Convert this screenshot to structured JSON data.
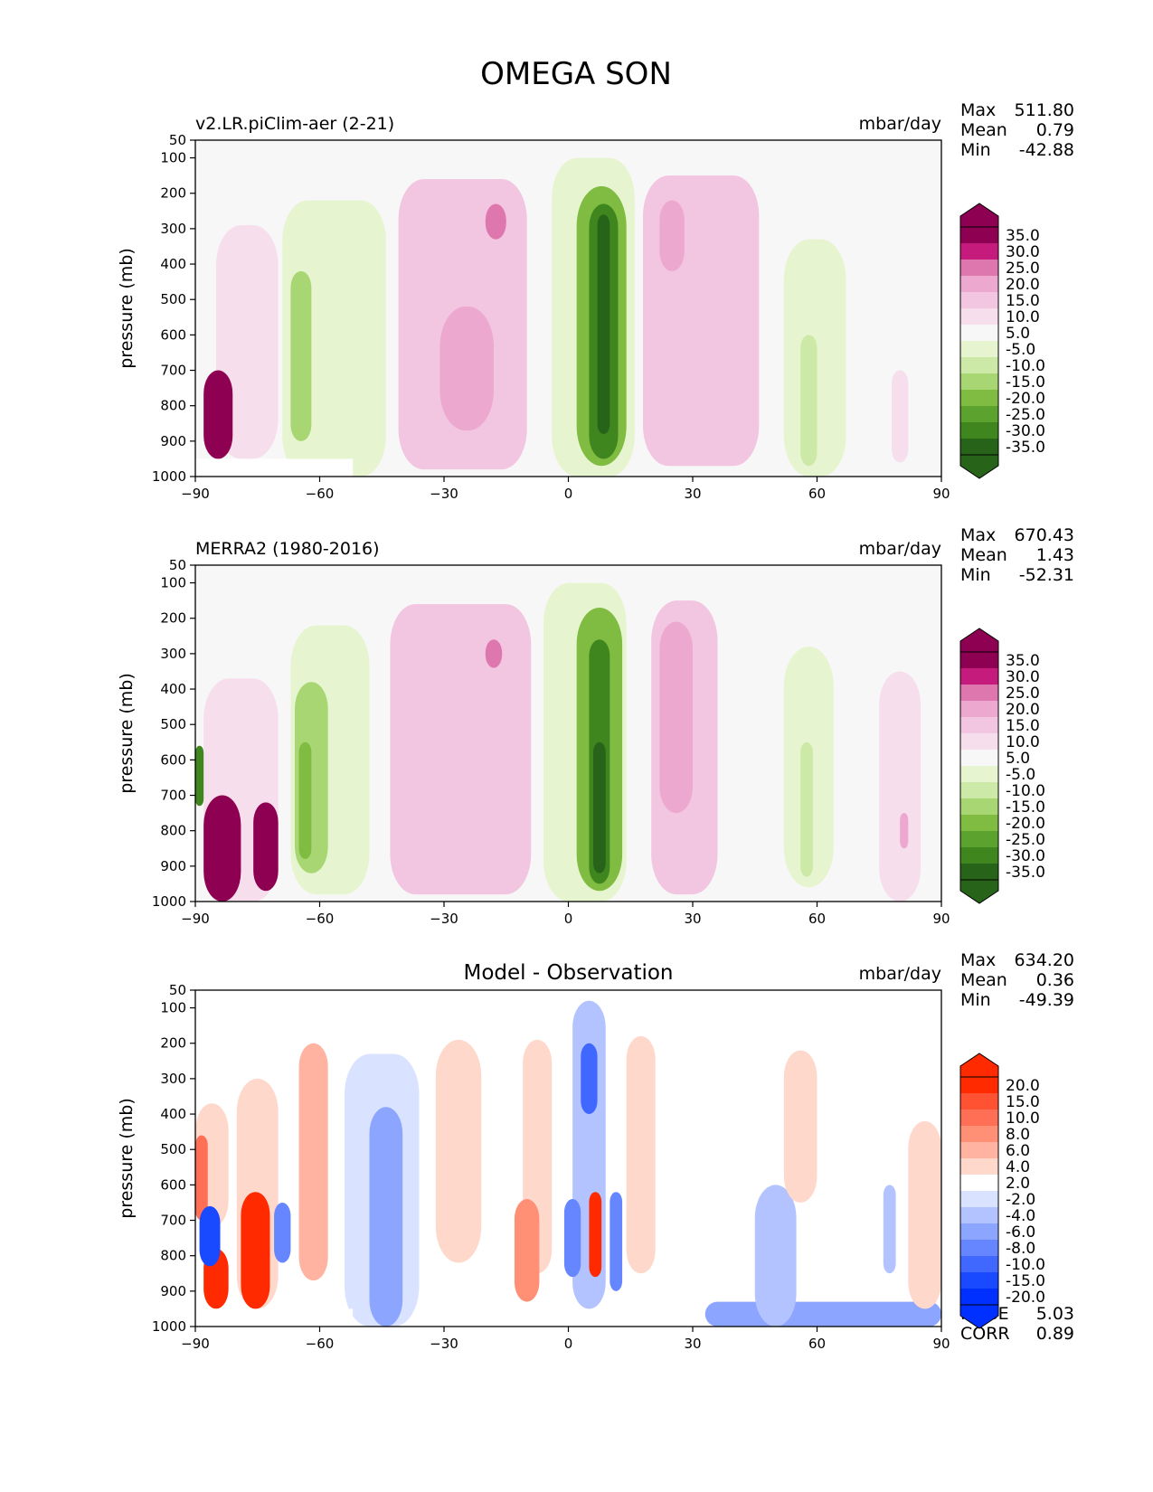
{
  "figure_title": "OMEGA SON",
  "chart_data": [
    {
      "type": "contour",
      "panel": "model",
      "title_left": "v2.LR.piClim-aer (2-21)",
      "title_center": "",
      "units": "mbar/day",
      "ylabel": "pressure (mb)",
      "xlabel": "",
      "x_ticks": [
        "−90",
        "−60",
        "−30",
        "0",
        "30",
        "60",
        "90"
      ],
      "x_tick_values": [
        -90,
        -60,
        -30,
        0,
        30,
        60,
        90
      ],
      "y_ticks": [
        "50",
        "100",
        "200",
        "300",
        "400",
        "500",
        "600",
        "700",
        "800",
        "900",
        "1000"
      ],
      "y_tick_values": [
        50,
        100,
        200,
        300,
        400,
        500,
        600,
        700,
        800,
        900,
        1000
      ],
      "xlim": [
        -90,
        90
      ],
      "ylim": [
        1000,
        50
      ],
      "stats": [
        {
          "label": "Max",
          "value": "511.80"
        },
        {
          "label": "Mean",
          "value": "0.79"
        },
        {
          "label": "Min",
          "value": "-42.88"
        }
      ],
      "colorbar": {
        "labels": [
          "35.0",
          "30.0",
          "25.0",
          "20.0",
          "15.0",
          "10.0",
          "5.0",
          "-5.0",
          "-10.0",
          "-15.0",
          "-20.0",
          "-25.0",
          "-30.0",
          "-35.0"
        ],
        "colors": [
          "#8e0152",
          "#8e0152",
          "#c51b7d",
          "#de77ae",
          "#eda8cf",
          "#f2c5e0",
          "#f7deec",
          "#f7f7f7",
          "#e6f5d0",
          "#cce9a8",
          "#a8d672",
          "#7fbc41",
          "#5ba22f",
          "#3f861f",
          "#276419",
          "#276419"
        ]
      },
      "features": [
        {
          "kind": "positive",
          "level": 1,
          "lat": [
            -85,
            -70
          ],
          "p": [
            290,
            950
          ]
        },
        {
          "kind": "negative",
          "level": 1,
          "lat": [
            -69,
            -44
          ],
          "p": [
            220,
            1000
          ]
        },
        {
          "kind": "negative",
          "level": 3,
          "lat": [
            -67,
            -62
          ],
          "p": [
            420,
            900
          ]
        },
        {
          "kind": "positive",
          "level": 2,
          "lat": [
            -41,
            -10
          ],
          "p": [
            160,
            980
          ]
        },
        {
          "kind": "positive",
          "level": 3,
          "lat": [
            -31,
            -18
          ],
          "p": [
            520,
            870
          ]
        },
        {
          "kind": "positive",
          "level": 4,
          "lat": [
            -20,
            -15
          ],
          "p": [
            230,
            330
          ]
        },
        {
          "kind": "negative",
          "level": 1,
          "lat": [
            -4,
            16
          ],
          "p": [
            100,
            1000
          ]
        },
        {
          "kind": "negative",
          "level": 4,
          "lat": [
            2,
            14
          ],
          "p": [
            180,
            970
          ]
        },
        {
          "kind": "negative",
          "level": 6,
          "lat": [
            5,
            12
          ],
          "p": [
            230,
            950
          ]
        },
        {
          "kind": "negative",
          "level": 7,
          "lat": [
            7,
            10
          ],
          "p": [
            260,
            880
          ]
        },
        {
          "kind": "positive",
          "level": 2,
          "lat": [
            18,
            46
          ],
          "p": [
            150,
            970
          ]
        },
        {
          "kind": "positive",
          "level": 3,
          "lat": [
            22,
            28
          ],
          "p": [
            220,
            420
          ]
        },
        {
          "kind": "negative",
          "level": 1,
          "lat": [
            52,
            67
          ],
          "p": [
            330,
            1000
          ]
        },
        {
          "kind": "negative",
          "level": 2,
          "lat": [
            56,
            60
          ],
          "p": [
            600,
            970
          ]
        },
        {
          "kind": "positive",
          "level": 8,
          "lat": [
            -88,
            -81
          ],
          "p": [
            700,
            950
          ]
        },
        {
          "kind": "positive",
          "level": 1,
          "lat": [
            78,
            82
          ],
          "p": [
            700,
            960
          ]
        }
      ],
      "missing": [
        {
          "lat": [
            -90,
            -52
          ],
          "p": [
            950,
            1000
          ]
        }
      ]
    },
    {
      "type": "contour",
      "panel": "observation",
      "title_left": "MERRA2 (1980-2016)",
      "title_center": "",
      "units": "mbar/day",
      "ylabel": "pressure (mb)",
      "xlabel": "",
      "x_ticks": [
        "−90",
        "−60",
        "−30",
        "0",
        "30",
        "60",
        "90"
      ],
      "x_tick_values": [
        -90,
        -60,
        -30,
        0,
        30,
        60,
        90
      ],
      "y_ticks": [
        "50",
        "100",
        "200",
        "300",
        "400",
        "500",
        "600",
        "700",
        "800",
        "900",
        "1000"
      ],
      "y_tick_values": [
        50,
        100,
        200,
        300,
        400,
        500,
        600,
        700,
        800,
        900,
        1000
      ],
      "xlim": [
        -90,
        90
      ],
      "ylim": [
        1000,
        50
      ],
      "stats": [
        {
          "label": "Max",
          "value": "670.43"
        },
        {
          "label": "Mean",
          "value": "1.43"
        },
        {
          "label": "Min",
          "value": "-52.31"
        }
      ],
      "colorbar": {
        "labels": [
          "35.0",
          "30.0",
          "25.0",
          "20.0",
          "15.0",
          "10.0",
          "5.0",
          "-5.0",
          "-10.0",
          "-15.0",
          "-20.0",
          "-25.0",
          "-30.0",
          "-35.0"
        ],
        "colors": [
          "#8e0152",
          "#8e0152",
          "#c51b7d",
          "#de77ae",
          "#eda8cf",
          "#f2c5e0",
          "#f7deec",
          "#f7f7f7",
          "#e6f5d0",
          "#cce9a8",
          "#a8d672",
          "#7fbc41",
          "#5ba22f",
          "#3f861f",
          "#276419",
          "#276419"
        ]
      },
      "features": [
        {
          "kind": "positive",
          "level": 1,
          "lat": [
            -88,
            -70
          ],
          "p": [
            370,
            1000
          ]
        },
        {
          "kind": "negative",
          "level": 1,
          "lat": [
            -67,
            -48
          ],
          "p": [
            220,
            980
          ]
        },
        {
          "kind": "negative",
          "level": 3,
          "lat": [
            -66,
            -58
          ],
          "p": [
            380,
            920
          ]
        },
        {
          "kind": "negative",
          "level": 4,
          "lat": [
            -65,
            -62
          ],
          "p": [
            550,
            880
          ]
        },
        {
          "kind": "positive",
          "level": 2,
          "lat": [
            -43,
            -9
          ],
          "p": [
            160,
            980
          ]
        },
        {
          "kind": "positive",
          "level": 4,
          "lat": [
            -20,
            -16
          ],
          "p": [
            260,
            340
          ]
        },
        {
          "kind": "negative",
          "level": 1,
          "lat": [
            -6,
            14
          ],
          "p": [
            100,
            1000
          ]
        },
        {
          "kind": "negative",
          "level": 4,
          "lat": [
            2,
            13
          ],
          "p": [
            170,
            970
          ]
        },
        {
          "kind": "negative",
          "level": 6,
          "lat": [
            5,
            10
          ],
          "p": [
            260,
            950
          ]
        },
        {
          "kind": "negative",
          "level": 7,
          "lat": [
            6,
            9
          ],
          "p": [
            550,
            920
          ]
        },
        {
          "kind": "positive",
          "level": 2,
          "lat": [
            20,
            36
          ],
          "p": [
            150,
            980
          ]
        },
        {
          "kind": "positive",
          "level": 3,
          "lat": [
            22,
            30
          ],
          "p": [
            210,
            750
          ]
        },
        {
          "kind": "negative",
          "level": 1,
          "lat": [
            52,
            64
          ],
          "p": [
            280,
            960
          ]
        },
        {
          "kind": "negative",
          "level": 2,
          "lat": [
            56,
            59
          ],
          "p": [
            550,
            930
          ]
        },
        {
          "kind": "positive",
          "level": 8,
          "lat": [
            -88,
            -79
          ],
          "p": [
            700,
            1000
          ]
        },
        {
          "kind": "positive",
          "level": 7,
          "lat": [
            -76,
            -70
          ],
          "p": [
            720,
            970
          ]
        },
        {
          "kind": "negative",
          "level": 6,
          "lat": [
            -90,
            -88
          ],
          "p": [
            560,
            730
          ]
        },
        {
          "kind": "positive",
          "level": 1,
          "lat": [
            75,
            85
          ],
          "p": [
            350,
            1000
          ]
        },
        {
          "kind": "positive",
          "level": 3,
          "lat": [
            80,
            82
          ],
          "p": [
            750,
            850
          ]
        }
      ],
      "missing": []
    },
    {
      "type": "contour",
      "panel": "difference",
      "title_left": "",
      "title_center": "Model - Observation",
      "units": "mbar/day",
      "ylabel": "pressure (mb)",
      "xlabel": "",
      "x_ticks": [
        "−90",
        "−60",
        "−30",
        "0",
        "30",
        "60",
        "90"
      ],
      "x_tick_values": [
        -90,
        -60,
        -30,
        0,
        30,
        60,
        90
      ],
      "y_ticks": [
        "50",
        "100",
        "200",
        "300",
        "400",
        "500",
        "600",
        "700",
        "800",
        "900",
        "1000"
      ],
      "y_tick_values": [
        50,
        100,
        200,
        300,
        400,
        500,
        600,
        700,
        800,
        900,
        1000
      ],
      "xlim": [
        -90,
        90
      ],
      "ylim": [
        1000,
        50
      ],
      "stats": [
        {
          "label": "Max",
          "value": "634.20"
        },
        {
          "label": "Mean",
          "value": "0.36"
        },
        {
          "label": "Min",
          "value": "-49.39"
        }
      ],
      "extra_stats": [
        {
          "label": "RMSE",
          "value": "5.03"
        },
        {
          "label": "CORR",
          "value": "0.89"
        }
      ],
      "colorbar": {
        "labels": [
          "20.0",
          "15.0",
          "10.0",
          "8.0",
          "6.0",
          "4.0",
          "2.0",
          "-2.0",
          "-4.0",
          "-6.0",
          "-8.0",
          "-10.0",
          "-15.0",
          "-20.0"
        ],
        "colors": [
          "#ff2a00",
          "#ff2a00",
          "#ff5233",
          "#ff6f55",
          "#ff9075",
          "#ffb3a0",
          "#ffd8cc",
          "#ffffff",
          "#d9e2ff",
          "#b3c3ff",
          "#8ca5ff",
          "#6686ff",
          "#4068ff",
          "#1a4aff",
          "#0030ff",
          "#0030ff"
        ]
      },
      "features": [
        {
          "kind": "positive",
          "level": 1,
          "lat": [
            -90,
            -82
          ],
          "p": [
            370,
            720
          ]
        },
        {
          "kind": "positive",
          "level": 4,
          "lat": [
            -90,
            -87
          ],
          "p": [
            460,
            700
          ]
        },
        {
          "kind": "positive",
          "level": 7,
          "lat": [
            -88,
            -82
          ],
          "p": [
            780,
            950
          ]
        },
        {
          "kind": "negative",
          "level": 6,
          "lat": [
            -89,
            -84
          ],
          "p": [
            660,
            830
          ]
        },
        {
          "kind": "positive",
          "level": 1,
          "lat": [
            -80,
            -70
          ],
          "p": [
            300,
            950
          ]
        },
        {
          "kind": "positive",
          "level": 6,
          "lat": [
            -79,
            -72
          ],
          "p": [
            620,
            950
          ]
        },
        {
          "kind": "negative",
          "level": 4,
          "lat": [
            -71,
            -67
          ],
          "p": [
            650,
            820
          ]
        },
        {
          "kind": "positive",
          "level": 2,
          "lat": [
            -65,
            -58
          ],
          "p": [
            200,
            870
          ]
        },
        {
          "kind": "negative",
          "level": 1,
          "lat": [
            -54,
            -36
          ],
          "p": [
            230,
            1000
          ]
        },
        {
          "kind": "negative",
          "level": 3,
          "lat": [
            -48,
            -40
          ],
          "p": [
            380,
            1000
          ]
        },
        {
          "kind": "positive",
          "level": 1,
          "lat": [
            -32,
            -21
          ],
          "p": [
            190,
            820
          ]
        },
        {
          "kind": "positive",
          "level": 1,
          "lat": [
            -11,
            -4
          ],
          "p": [
            190,
            850
          ]
        },
        {
          "kind": "positive",
          "level": 3,
          "lat": [
            -13,
            -7
          ],
          "p": [
            640,
            930
          ]
        },
        {
          "kind": "negative",
          "level": 2,
          "lat": [
            1,
            9
          ],
          "p": [
            80,
            950
          ]
        },
        {
          "kind": "negative",
          "level": 5,
          "lat": [
            3,
            7
          ],
          "p": [
            200,
            400
          ]
        },
        {
          "kind": "negative",
          "level": 4,
          "lat": [
            -1,
            3
          ],
          "p": [
            640,
            860
          ]
        },
        {
          "kind": "positive",
          "level": 6,
          "lat": [
            5,
            8
          ],
          "p": [
            620,
            860
          ]
        },
        {
          "kind": "negative",
          "level": 4,
          "lat": [
            10,
            13
          ],
          "p": [
            620,
            900
          ]
        },
        {
          "kind": "positive",
          "level": 1,
          "lat": [
            14,
            21
          ],
          "p": [
            180,
            850
          ]
        },
        {
          "kind": "negative",
          "level": 3,
          "lat": [
            33,
            90
          ],
          "p": [
            930,
            1000
          ]
        },
        {
          "kind": "negative",
          "level": 2,
          "lat": [
            45,
            55
          ],
          "p": [
            600,
            1000
          ]
        },
        {
          "kind": "positive",
          "level": 1,
          "lat": [
            52,
            60
          ],
          "p": [
            220,
            650
          ]
        },
        {
          "kind": "positive",
          "level": 1,
          "lat": [
            82,
            90
          ],
          "p": [
            420,
            950
          ]
        },
        {
          "kind": "negative",
          "level": 2,
          "lat": [
            76,
            79
          ],
          "p": [
            600,
            850
          ]
        }
      ],
      "missing": [
        {
          "lat": [
            -90,
            -52
          ],
          "p": [
            950,
            1000
          ]
        }
      ]
    }
  ]
}
